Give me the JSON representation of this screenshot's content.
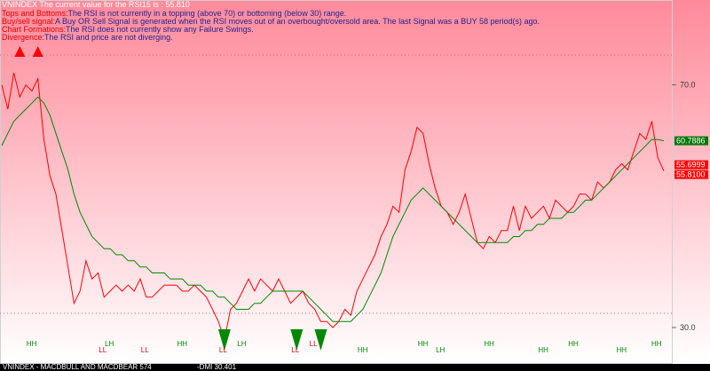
{
  "window_title": "VNINDEX  The current value for the RSI15 is : 55.810",
  "commentary": [
    {
      "label": "Tops and Bottoms:",
      "text": "The RSI is not currently in a topping (above 70) or bottoming (below 30) range."
    },
    {
      "label": "Buy/sell signal:",
      "text": "A Buy OR Sell Signal is generated when the RSI moves out of an overbought/oversold area. The last Signal was a BUY 58 period(s) ago."
    },
    {
      "label": "Chart Formations:",
      "text": "The RSI does not currently show any Failure Swings."
    },
    {
      "label": "Divergence:",
      "text": "The RSI and price are not diverging."
    }
  ],
  "footer": {
    "left": "VNINDEX - MACDBULL AND MACDBEAR 574",
    "right": "-DMI 30.401"
  },
  "colors": {
    "bg_top": "#ff8a9a",
    "bg_bottom": "#ffffff",
    "rsi": "#ff0000",
    "signal": "#008800",
    "value_box_rsi": "#ff0000",
    "value_box_signal": "#007700",
    "label_red": "#e00000",
    "label_navy": "#1f1f8f"
  },
  "chart_data": {
    "type": "line",
    "ylim": [
      24,
      84
    ],
    "yticks": [
      30.0,
      70.0
    ],
    "grid": false,
    "x": [
      1,
      2,
      3,
      4,
      5,
      6,
      7,
      8,
      9,
      10,
      11,
      12,
      13,
      14,
      15,
      16,
      17,
      18,
      19,
      20,
      21,
      22,
      23,
      24,
      25,
      26,
      27,
      28,
      29,
      30,
      31,
      32,
      33,
      34,
      35,
      36,
      37,
      38,
      39,
      40,
      41,
      42,
      43,
      44,
      45,
      46,
      47,
      48,
      49,
      50,
      51,
      52,
      53,
      54,
      55,
      56,
      57,
      58,
      59,
      60,
      61,
      62,
      63,
      64,
      65,
      66,
      67,
      68,
      69,
      70,
      71,
      72,
      73,
      74,
      75,
      76,
      77,
      78,
      79,
      80,
      81,
      82,
      83,
      84,
      85,
      86,
      87,
      88,
      89,
      90,
      91,
      92,
      93,
      94,
      95,
      96,
      97,
      98,
      99,
      100,
      101,
      102,
      103,
      104,
      105,
      106,
      107,
      108,
      109,
      110,
      111
    ],
    "series": [
      {
        "values": [
          70,
          66,
          72,
          68,
          70,
          69,
          71,
          61,
          55,
          52,
          46,
          40,
          34,
          36,
          41,
          38,
          39,
          35,
          36,
          37,
          36,
          37,
          36,
          38,
          35,
          35,
          36,
          37,
          37,
          37,
          36,
          36,
          37,
          36,
          35,
          33,
          31,
          28,
          33,
          34,
          36,
          38,
          36,
          38,
          37,
          36,
          38,
          36,
          34,
          35,
          36,
          34,
          33,
          31,
          31,
          30,
          31,
          33,
          32,
          36,
          38,
          40,
          42,
          45,
          47,
          50,
          49,
          56,
          59,
          63,
          62,
          57,
          53,
          50,
          49,
          47,
          49,
          52,
          48,
          44,
          43,
          45,
          44,
          46,
          46,
          50,
          46,
          50,
          48,
          49,
          50,
          48,
          51,
          50,
          49,
          50,
          52,
          52,
          51,
          54,
          53,
          54,
          56,
          57,
          56,
          59,
          62,
          61,
          64,
          58,
          55.81
        ],
        "labels": [
          "55.8100",
          "55.6999"
        ]
      },
      {
        "values": [
          60,
          62,
          64,
          65,
          66,
          67,
          68,
          67,
          65,
          62,
          59,
          56,
          52,
          49,
          47,
          45,
          44,
          43,
          43,
          42,
          42,
          41,
          41,
          40,
          40,
          39,
          39,
          39,
          38,
          38,
          38,
          37,
          37,
          37,
          36,
          36,
          35,
          35,
          34,
          33,
          33,
          33,
          34,
          34,
          35,
          36,
          36,
          36,
          36,
          36,
          36,
          35,
          34,
          33,
          32,
          31,
          31,
          31,
          31,
          32,
          33,
          35,
          37,
          39,
          42,
          45,
          47,
          49,
          51,
          52,
          53,
          52,
          51,
          50,
          49,
          48,
          47,
          46,
          45,
          44,
          44,
          44,
          44,
          44,
          44,
          45,
          45,
          46,
          46,
          47,
          47,
          48,
          48,
          48,
          49,
          49,
          50,
          51,
          51,
          52,
          53,
          54,
          55,
          56,
          57,
          58,
          59,
          60,
          61,
          61,
          60.79
        ],
        "labels": [
          "60.7886"
        ]
      }
    ],
    "markers": [
      {
        "type": "sell",
        "x": 4
      },
      {
        "type": "sell",
        "x": 7
      },
      {
        "type": "buy",
        "x": 38
      },
      {
        "type": "buy",
        "x": 50
      },
      {
        "type": "buy",
        "x": 54
      }
    ],
    "swing_labels": [
      {
        "text": "HH",
        "x": 6,
        "color": "#008800"
      },
      {
        "text": "LL",
        "x": 18,
        "color": "#e00000"
      },
      {
        "text": "LH",
        "x": 19,
        "color": "#008800"
      },
      {
        "text": "LL",
        "x": 25,
        "color": "#e00000"
      },
      {
        "text": "HH",
        "x": 31,
        "color": "#008800"
      },
      {
        "text": "LL",
        "x": 38,
        "color": "#e00000"
      },
      {
        "text": "LH",
        "x": 41,
        "color": "#008800"
      },
      {
        "text": "LL",
        "x": 50,
        "color": "#e00000"
      },
      {
        "text": "LL",
        "x": 53,
        "color": "#e00000"
      },
      {
        "text": "HH",
        "x": 61,
        "color": "#008800"
      },
      {
        "text": "HH",
        "x": 71,
        "color": "#008800"
      },
      {
        "text": "LH",
        "x": 74,
        "color": "#008800"
      },
      {
        "text": "HH",
        "x": 82,
        "color": "#008800"
      },
      {
        "text": "HH",
        "x": 91,
        "color": "#008800"
      },
      {
        "text": "HH",
        "x": 96,
        "color": "#008800"
      },
      {
        "text": "HH",
        "x": 104,
        "color": "#008800"
      },
      {
        "text": "HH",
        "x": 114,
        "color": "#008800"
      }
    ]
  }
}
